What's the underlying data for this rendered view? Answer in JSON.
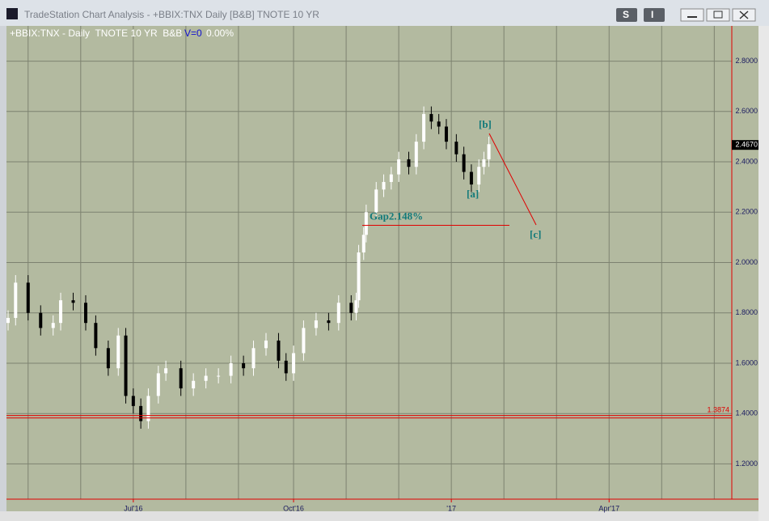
{
  "window": {
    "title": "TradeStation Chart Analysis - +BBIX:TNX Daily [B&B] TNOTE 10 YR",
    "buttons": [
      "S",
      "I"
    ]
  },
  "chart_data": {
    "type": "candlestick",
    "header": [
      "+BBIX:TNX - Daily  TNOTE 10 YR  B&B",
      "V=0",
      "0.00%"
    ],
    "x": [
      0,
      3,
      8,
      13,
      18,
      21,
      26,
      31,
      35,
      40,
      44,
      47,
      50,
      53,
      56,
      60,
      63,
      69,
      74,
      79,
      84,
      89,
      94,
      98,
      103,
      108,
      111,
      114,
      118,
      123,
      128,
      132,
      137,
      139,
      140,
      142,
      143,
      147,
      150,
      153,
      156,
      160,
      163,
      166,
      169,
      172,
      175,
      179,
      182,
      185,
      188,
      190,
      192
    ],
    "open": [
      1.76,
      1.78,
      1.92,
      1.8,
      1.74,
      1.76,
      1.85,
      1.84,
      1.76,
      1.66,
      1.58,
      1.71,
      1.47,
      1.43,
      1.37,
      1.47,
      1.56,
      1.58,
      1.5,
      1.53,
      1.55,
      1.55,
      1.6,
      1.58,
      1.66,
      1.69,
      1.61,
      1.56,
      1.64,
      1.74,
      1.77,
      1.76,
      1.84,
      1.8,
      1.85,
      2.04,
      2.11,
      2.2,
      2.29,
      2.32,
      2.35,
      2.41,
      2.38,
      2.48,
      2.59,
      2.56,
      2.54,
      2.48,
      2.43,
      2.36,
      2.31,
      2.38,
      2.41
    ],
    "high": [
      1.81,
      1.95,
      1.95,
      1.83,
      1.79,
      1.88,
      1.88,
      1.87,
      1.79,
      1.69,
      1.74,
      1.74,
      1.5,
      1.46,
      1.5,
      1.59,
      1.61,
      1.61,
      1.56,
      1.58,
      1.58,
      1.63,
      1.63,
      1.69,
      1.72,
      1.72,
      1.64,
      1.67,
      1.77,
      1.8,
      1.8,
      1.87,
      1.87,
      1.88,
      2.07,
      2.14,
      2.23,
      2.32,
      2.35,
      2.38,
      2.44,
      2.44,
      2.51,
      2.62,
      2.62,
      2.59,
      2.57,
      2.51,
      2.46,
      2.39,
      2.41,
      2.44,
      2.5
    ],
    "low": [
      1.73,
      1.75,
      1.77,
      1.71,
      1.71,
      1.73,
      1.81,
      1.73,
      1.63,
      1.55,
      1.55,
      1.44,
      1.4,
      1.34,
      1.34,
      1.44,
      1.53,
      1.47,
      1.47,
      1.5,
      1.52,
      1.52,
      1.55,
      1.55,
      1.63,
      1.58,
      1.53,
      1.53,
      1.61,
      1.71,
      1.73,
      1.73,
      1.77,
      1.77,
      1.82,
      2.01,
      2.08,
      2.17,
      2.26,
      2.29,
      2.32,
      2.35,
      2.35,
      2.45,
      2.53,
      2.51,
      2.45,
      2.4,
      2.33,
      2.28,
      2.28,
      2.35,
      2.38
    ],
    "close": [
      1.78,
      1.92,
      1.8,
      1.74,
      1.76,
      1.85,
      1.84,
      1.76,
      1.66,
      1.58,
      1.71,
      1.47,
      1.43,
      1.37,
      1.47,
      1.56,
      1.58,
      1.5,
      1.53,
      1.55,
      1.55,
      1.6,
      1.58,
      1.66,
      1.69,
      1.61,
      1.56,
      1.64,
      1.74,
      1.77,
      1.76,
      1.84,
      1.8,
      1.85,
      2.04,
      2.11,
      2.2,
      2.29,
      2.32,
      2.35,
      2.41,
      2.38,
      2.48,
      2.59,
      2.56,
      2.54,
      2.48,
      2.43,
      2.36,
      2.31,
      2.38,
      2.41,
      2.47
    ],
    "up_color": "#ffffff",
    "down_color": "#000000",
    "xlim": [
      0,
      289
    ],
    "xgrid": [
      8,
      29,
      50,
      71,
      92,
      114,
      135,
      156,
      177,
      198,
      219,
      240,
      261,
      282
    ],
    "xticks": [
      {
        "value": 50,
        "label": "Jul'16"
      },
      {
        "value": 114,
        "label": "Oct'16"
      },
      {
        "value": 177,
        "label": "'17"
      },
      {
        "value": 240,
        "label": "Apr'17"
      }
    ],
    "ylim": [
      1.06,
      2.94
    ],
    "yticks": [
      {
        "value": 1.2,
        "label": "1.2000"
      },
      {
        "value": 1.4,
        "label": "1.4000"
      },
      {
        "value": 1.6,
        "label": "1.6000"
      },
      {
        "value": 1.8,
        "label": "1.8000"
      },
      {
        "value": 2.0,
        "label": "2.0000"
      },
      {
        "value": 2.2,
        "label": "2.2000"
      },
      {
        "value": 2.4,
        "label": "2.4000"
      },
      {
        "value": 2.6,
        "label": "2.6000"
      },
      {
        "value": 2.8,
        "label": "2.8000"
      }
    ],
    "grid": true,
    "last_price": {
      "value": 2.467,
      "label": "2.4670"
    },
    "support": {
      "value": 1.3874,
      "label": "1.3874",
      "color": "#e00000"
    },
    "gap": {
      "value": 2.148,
      "label": "Gap2.148%",
      "color": "#e00000"
    },
    "annotations": [
      "[a]",
      "[b]",
      "[c]"
    ]
  }
}
